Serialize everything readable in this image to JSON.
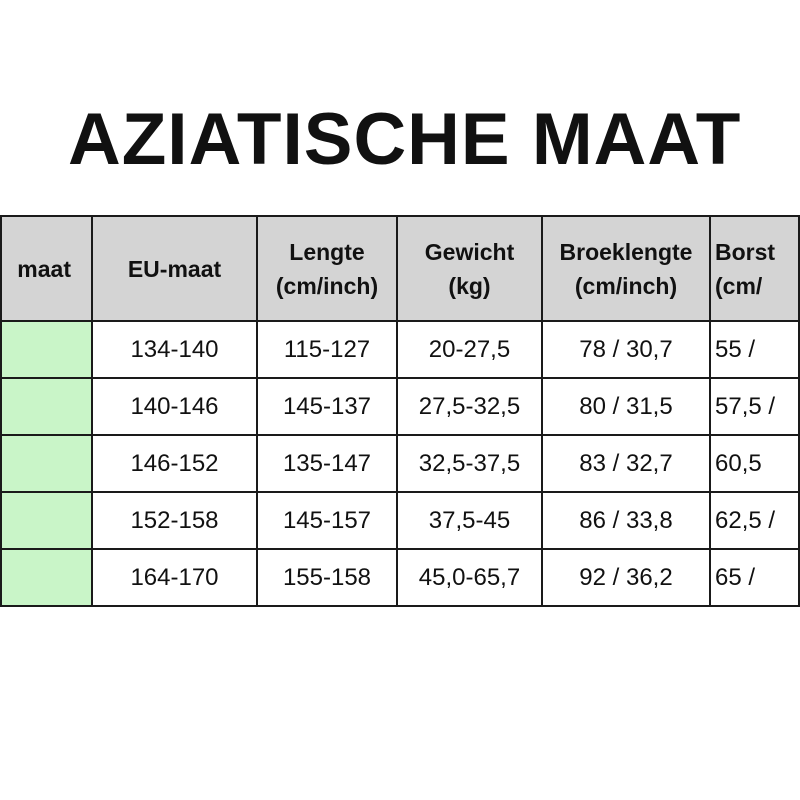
{
  "title": "AZIATISCHE MAAT",
  "table": {
    "headers": [
      {
        "line1": "maat",
        "line2": ""
      },
      {
        "line1": "EU-maat",
        "line2": ""
      },
      {
        "line1": "Lengte",
        "line2": "(cm/inch)"
      },
      {
        "line1": "Gewicht",
        "line2": "(kg)"
      },
      {
        "line1": "Broeklengte",
        "line2": "(cm/inch)"
      },
      {
        "line1": "Borst",
        "line2": "(cm/"
      }
    ],
    "rows": [
      [
        "",
        "134-140",
        "115-127",
        "20-27,5",
        "78 / 30,7",
        "55 /"
      ],
      [
        "",
        "140-146",
        "145-137",
        "27,5-32,5",
        "80 / 31,5",
        "57,5 /"
      ],
      [
        "",
        "146-152",
        "135-147",
        "32,5-37,5",
        "83 / 32,7",
        "60,5"
      ],
      [
        "",
        "152-158",
        "145-157",
        "37,5-45",
        "86 / 33,8",
        "62,5 /"
      ],
      [
        "",
        "164-170",
        "155-158",
        "45,0-65,7",
        "92 / 36,2",
        "65 /"
      ]
    ],
    "colors": {
      "header_bg": "#d4d4d4",
      "first_col_bg": "#c9f5c8",
      "border": "#1a1a1a"
    }
  }
}
